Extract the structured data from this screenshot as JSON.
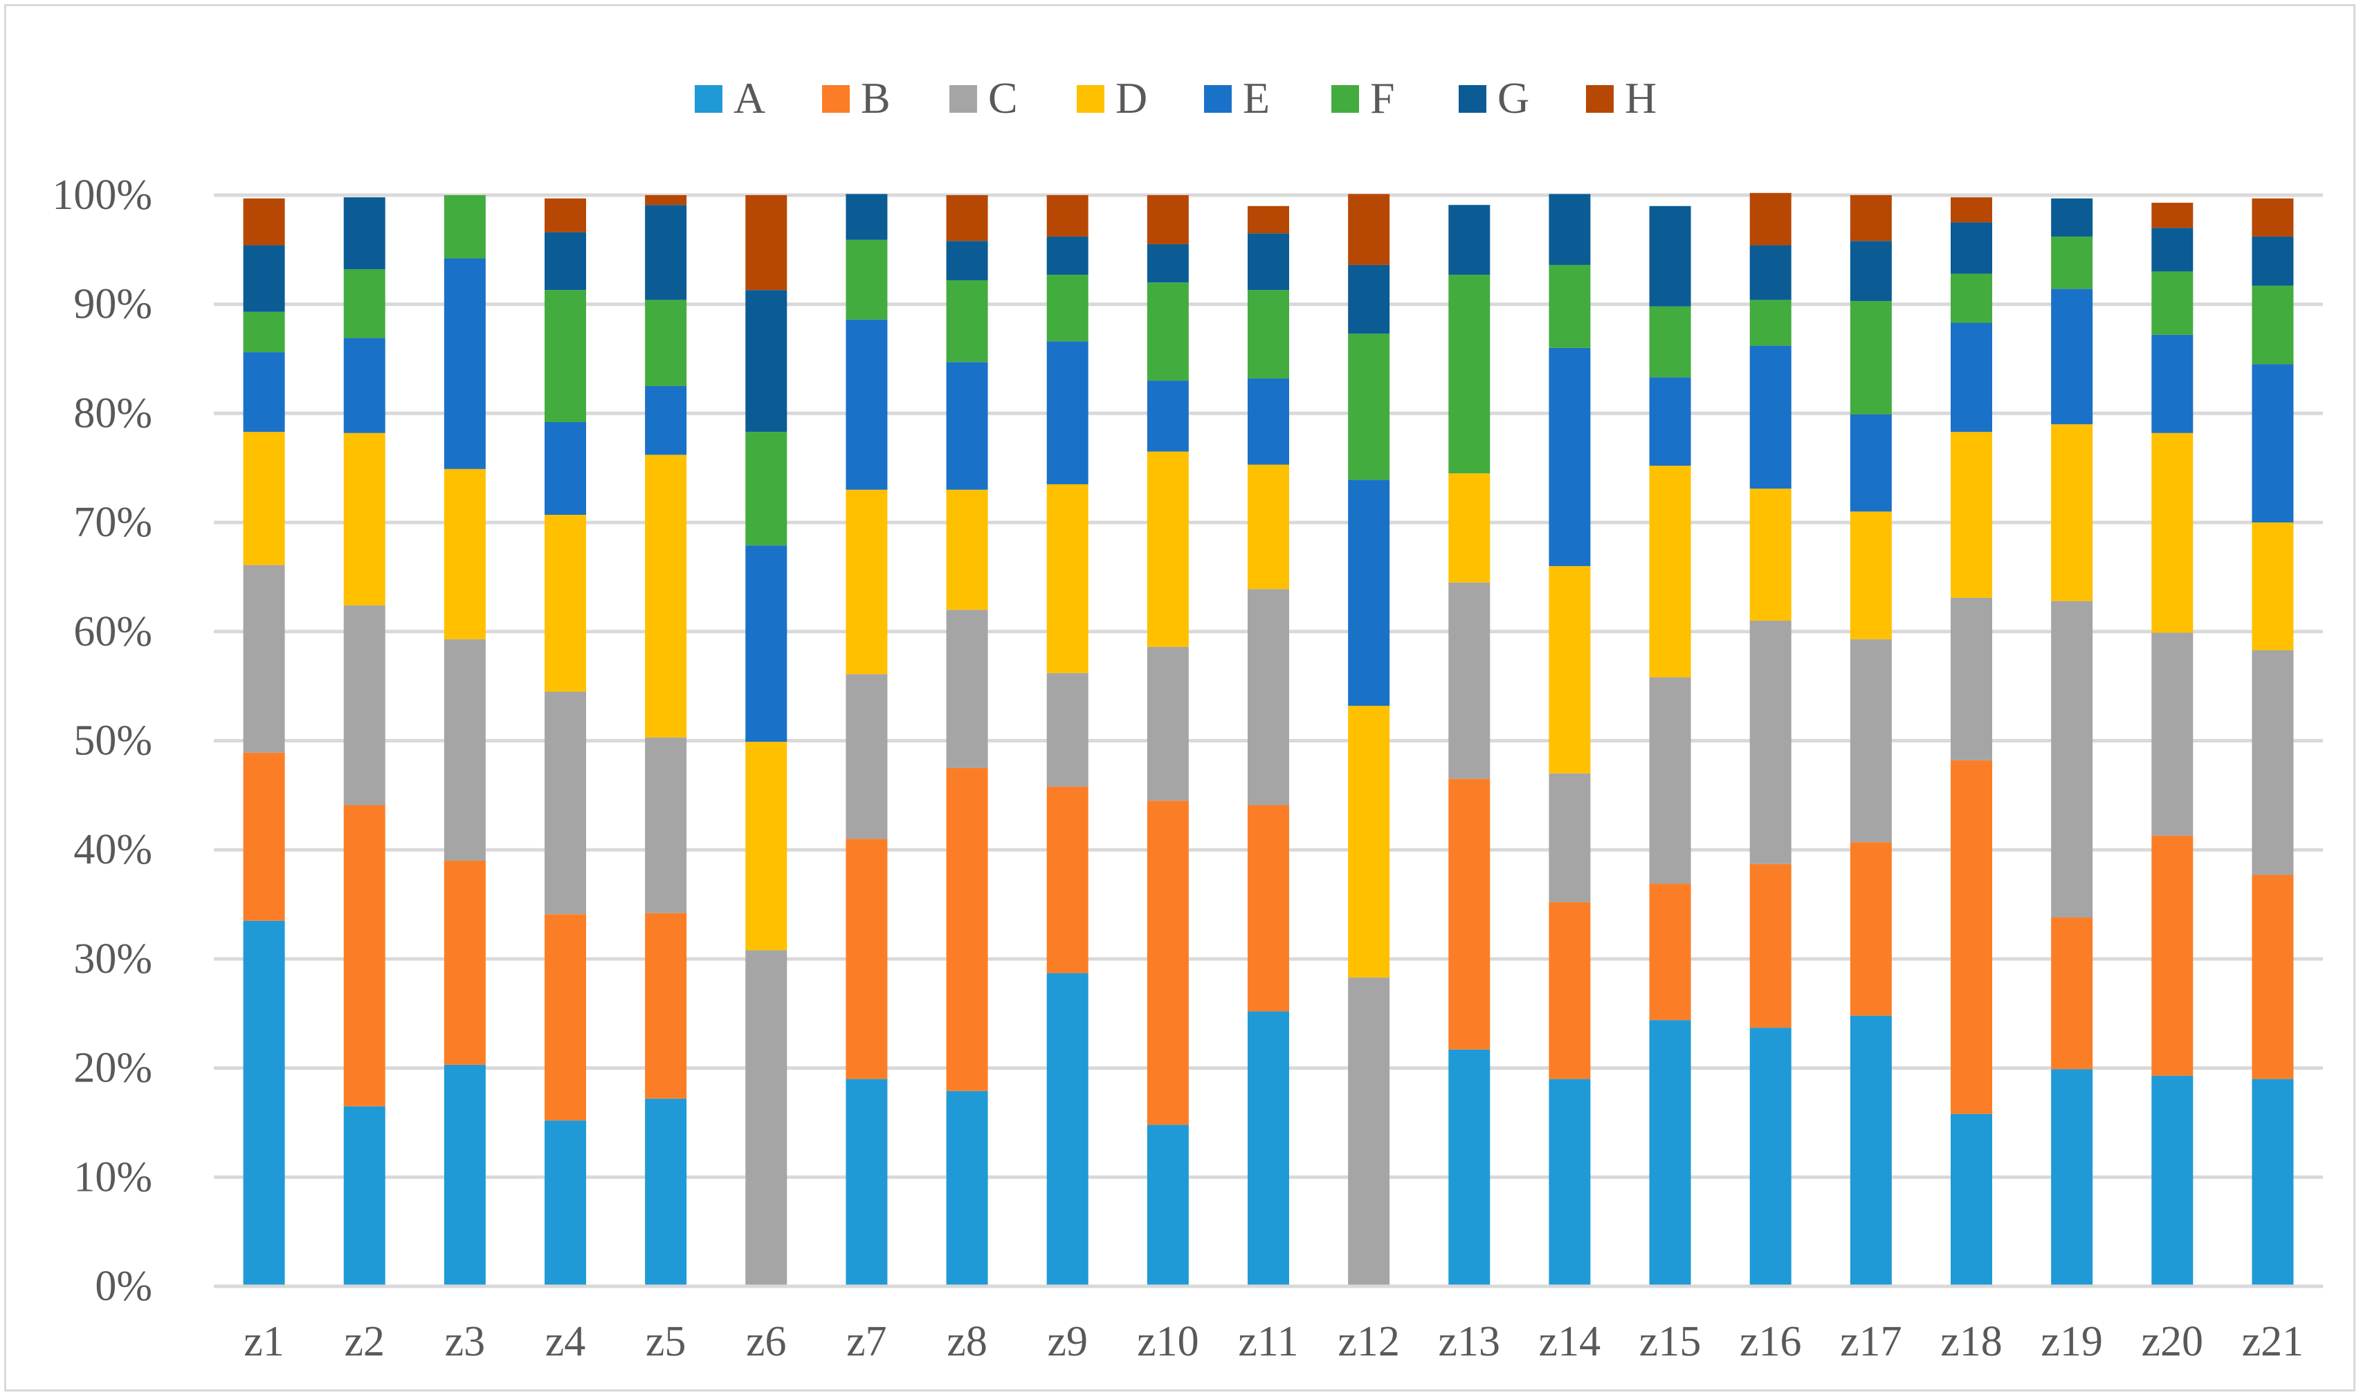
{
  "chart_data": {
    "type": "bar",
    "stacked": true,
    "title": "",
    "xlabel": "",
    "ylabel": "",
    "ylim": [
      0,
      100
    ],
    "y_ticks": [
      "0%",
      "10%",
      "20%",
      "30%",
      "40%",
      "50%",
      "60%",
      "70%",
      "80%",
      "90%",
      "100%"
    ],
    "grid": true,
    "legend_position": "top",
    "categories": [
      "z1",
      "z2",
      "z3",
      "z4",
      "z5",
      "z6",
      "z7",
      "z8",
      "z9",
      "z10",
      "z11",
      "z12",
      "z13",
      "z14",
      "z15",
      "z16",
      "z17",
      "z18",
      "z19",
      "z20",
      "z21"
    ],
    "series": [
      {
        "name": "A",
        "color": "#1f9ad6",
        "values": [
          33.5,
          16.5,
          20.3,
          15.2,
          17.2,
          0,
          19,
          17.9,
          28.7,
          14.8,
          25.2,
          0,
          21.7,
          19,
          24.4,
          23.7,
          24.8,
          15.8,
          19.9,
          19.3,
          19
        ]
      },
      {
        "name": "B",
        "color": "#fb7e26",
        "values": [
          15.4,
          27.6,
          18.7,
          18.9,
          17,
          0,
          22,
          29.6,
          17.1,
          29.7,
          18.9,
          0,
          24.8,
          16.2,
          12.5,
          15,
          15.9,
          32.4,
          13.9,
          22,
          18.7
        ]
      },
      {
        "name": "C",
        "color": "#a5a5a5",
        "values": [
          17.2,
          18.3,
          20.3,
          20.4,
          16.1,
          30.8,
          15.1,
          14.5,
          10.4,
          14.1,
          19.8,
          28.3,
          18,
          11.8,
          18.9,
          22.3,
          18.6,
          14.9,
          29,
          18.6,
          20.6
        ]
      },
      {
        "name": "D",
        "color": "#ffc000",
        "values": [
          12.2,
          15.8,
          15.6,
          16.2,
          25.9,
          19.1,
          16.9,
          11,
          17.3,
          17.9,
          11.4,
          24.9,
          10,
          19,
          19.4,
          12.1,
          11.7,
          15.2,
          16.2,
          18.3,
          11.7
        ]
      },
      {
        "name": "E",
        "color": "#1a71c8",
        "values": [
          7.3,
          8.7,
          19.3,
          8.5,
          6.3,
          18,
          15.6,
          11.7,
          13.1,
          6.5,
          7.9,
          20.7,
          0,
          20,
          8.1,
          13.1,
          8.9,
          10,
          12.4,
          9,
          14.5
        ]
      },
      {
        "name": "F",
        "color": "#43ac3f",
        "values": [
          3.7,
          6.3,
          5.8,
          12.1,
          7.9,
          10.4,
          7.3,
          7.5,
          6.1,
          9,
          8.1,
          13.4,
          18.2,
          7.6,
          6.5,
          4.2,
          10.4,
          4.5,
          4.8,
          5.8,
          7.2
        ]
      },
      {
        "name": "G",
        "color": "#0b5c95",
        "values": [
          6.1,
          6.6,
          0,
          5.3,
          8.7,
          13,
          4.2,
          3.6,
          3.5,
          3.5,
          5.2,
          6.3,
          6.4,
          6.5,
          9.2,
          5,
          5.5,
          4.7,
          3.5,
          4,
          4.5
        ]
      },
      {
        "name": "H",
        "color": "#b74804",
        "values": [
          4.3,
          0,
          0,
          3.1,
          0.9,
          8.7,
          0,
          4.2,
          3.8,
          4.5,
          2.5,
          6.5,
          0,
          0,
          0,
          4.8,
          4.2,
          2.3,
          0,
          2.3,
          3.5
        ]
      }
    ]
  }
}
